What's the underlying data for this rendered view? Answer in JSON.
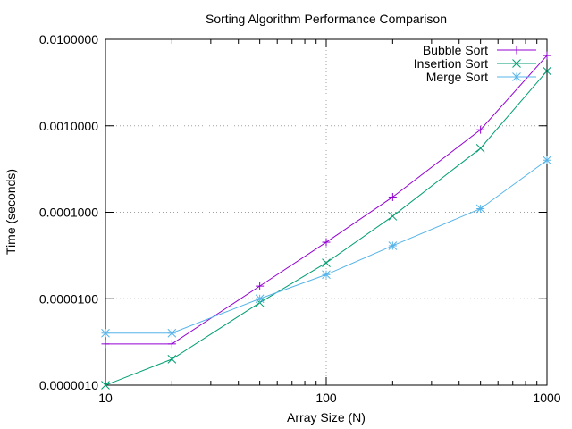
{
  "chart_data": {
    "type": "line",
    "title": "Sorting Algorithm Performance Comparison",
    "xlabel": "Array Size (N)",
    "ylabel": "Time (seconds)",
    "xscale": "log",
    "yscale": "log",
    "xlim": [
      10,
      1000
    ],
    "ylim": [
      1e-06,
      0.01
    ],
    "xticks": [
      10,
      100,
      1000
    ],
    "xtick_labels": [
      "10",
      "100",
      "1000"
    ],
    "yticks": [
      1e-06,
      1e-05,
      0.0001,
      0.001,
      0.01
    ],
    "ytick_labels": [
      "0.0000010",
      "0.0000100",
      "0.0001000",
      "0.0010000",
      "0.0100000"
    ],
    "grid": "dotted, at major ticks",
    "legend_position": "top-right",
    "x": [
      10,
      20,
      50,
      100,
      200,
      500,
      1000
    ],
    "series": [
      {
        "name": "Bubble Sort",
        "color": "#9400d3",
        "marker": "plus",
        "values": [
          3e-06,
          3e-06,
          1.4e-05,
          4.5e-05,
          0.00015,
          0.0009,
          0.0065
        ]
      },
      {
        "name": "Insertion Sort",
        "color": "#009e73",
        "marker": "cross",
        "values": [
          1e-06,
          2e-06,
          9e-06,
          2.6e-05,
          9e-05,
          0.00055,
          0.0043
        ]
      },
      {
        "name": "Merge Sort",
        "color": "#56b4e9",
        "marker": "star",
        "values": [
          4e-06,
          4e-06,
          1e-05,
          1.9e-05,
          4.1e-05,
          0.00011,
          0.0004
        ]
      }
    ]
  }
}
